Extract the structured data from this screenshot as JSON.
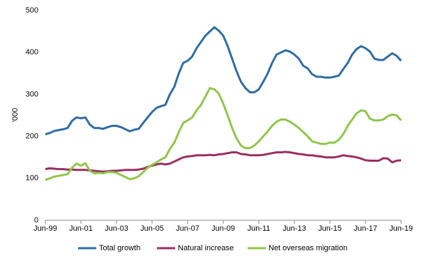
{
  "chart_data": {
    "type": "line",
    "y_label": "'000",
    "categories": [
      "Jun-99",
      null,
      null,
      null,
      null,
      null,
      null,
      null,
      "Jun-01",
      null,
      null,
      null,
      null,
      null,
      null,
      null,
      "Jun-03",
      null,
      null,
      null,
      null,
      null,
      null,
      null,
      "Jun-05",
      null,
      null,
      null,
      null,
      null,
      null,
      null,
      "Jun-07",
      null,
      null,
      null,
      null,
      null,
      null,
      null,
      "Jun-09",
      null,
      null,
      null,
      null,
      null,
      null,
      null,
      "Jun-11",
      null,
      null,
      null,
      null,
      null,
      null,
      null,
      "Jun-13",
      null,
      null,
      null,
      null,
      null,
      null,
      null,
      "Jun-15",
      null,
      null,
      null,
      null,
      null,
      null,
      null,
      "Jun-17",
      null,
      null,
      null,
      null,
      null,
      null,
      null,
      "Jun-19"
    ],
    "series": [
      {
        "name": "Total growth",
        "color": "#2e6ca4",
        "values": [
          205,
          208,
          213,
          215,
          217,
          220,
          237,
          245,
          243,
          245,
          228,
          220,
          220,
          218,
          222,
          225,
          225,
          222,
          217,
          212,
          216,
          218,
          232,
          245,
          258,
          268,
          272,
          275,
          300,
          318,
          350,
          375,
          380,
          390,
          410,
          425,
          440,
          450,
          460,
          452,
          440,
          415,
          385,
          355,
          330,
          315,
          305,
          305,
          312,
          330,
          350,
          375,
          395,
          400,
          405,
          402,
          395,
          385,
          368,
          362,
          348,
          342,
          342,
          340,
          340,
          342,
          345,
          360,
          375,
          395,
          408,
          415,
          410,
          402,
          385,
          382,
          382,
          390,
          398,
          392,
          380
        ]
      },
      {
        "name": "Natural increase",
        "color": "#9b2d5e",
        "values": [
          122,
          124,
          123,
          122,
          122,
          121,
          121,
          120,
          120,
          120,
          119,
          118,
          117,
          116,
          117,
          118,
          118,
          119,
          120,
          120,
          120,
          121,
          123,
          127,
          130,
          133,
          135,
          133,
          135,
          140,
          145,
          150,
          152,
          153,
          155,
          155,
          155,
          156,
          155,
          157,
          158,
          160,
          162,
          162,
          158,
          157,
          155,
          155,
          155,
          156,
          158,
          160,
          162,
          162,
          163,
          162,
          160,
          158,
          157,
          155,
          155,
          153,
          152,
          150,
          150,
          150,
          152,
          155,
          153,
          152,
          150,
          147,
          143,
          142,
          142,
          142,
          148,
          147,
          138,
          142,
          143
        ]
      },
      {
        "name": "Net overseas migration",
        "color": "#8fc64a",
        "values": [
          96,
          100,
          104,
          106,
          108,
          110,
          125,
          135,
          130,
          136,
          118,
          112,
          113,
          112,
          115,
          115,
          113,
          108,
          103,
          98,
          100,
          105,
          115,
          125,
          132,
          138,
          145,
          150,
          170,
          185,
          210,
          232,
          238,
          245,
          262,
          275,
          295,
          315,
          312,
          302,
          278,
          250,
          220,
          195,
          178,
          172,
          172,
          178,
          188,
          200,
          212,
          225,
          235,
          240,
          240,
          235,
          228,
          220,
          210,
          200,
          188,
          185,
          182,
          182,
          185,
          185,
          192,
          205,
          225,
          240,
          255,
          262,
          260,
          242,
          238,
          238,
          240,
          248,
          252,
          250,
          238
        ]
      }
    ],
    "ylim": [
      0,
      500
    ],
    "yticks": [
      0,
      100,
      200,
      300,
      400,
      500
    ]
  }
}
